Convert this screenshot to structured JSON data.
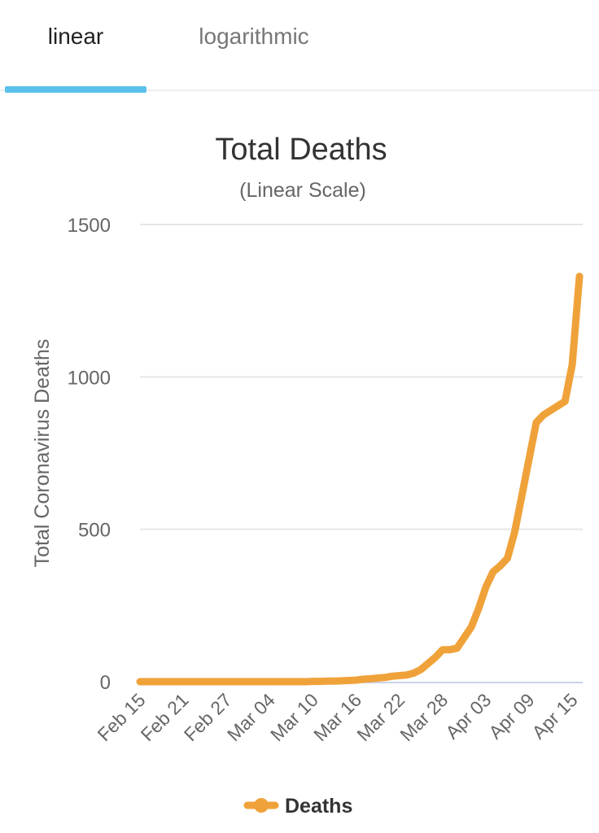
{
  "tabs": [
    {
      "label": "linear",
      "active": true
    },
    {
      "label": "logarithmic",
      "active": false
    }
  ],
  "colors": {
    "accent": "#5bc0eb",
    "series": "#f0a23a",
    "grid": "#e6e6e6",
    "axis": "#c8d3e6",
    "title": "#333333",
    "muted": "#666666"
  },
  "chart_data": {
    "type": "line",
    "title": "Total Deaths",
    "subtitle": "(Linear Scale)",
    "xlabel": "",
    "ylabel": "Total Coronavirus Deaths",
    "ylim": [
      0,
      1500
    ],
    "yticks": [
      0,
      500,
      1000,
      1500
    ],
    "grid": true,
    "legend": "bottom-center",
    "xtick_labels": [
      "Feb 15",
      "Feb 21",
      "Feb 27",
      "Mar 04",
      "Mar 10",
      "Mar 16",
      "Mar 22",
      "Mar 28",
      "Apr 03",
      "Apr 09",
      "Apr 15"
    ],
    "x": [
      "Feb 15",
      "Feb 16",
      "Feb 17",
      "Feb 18",
      "Feb 19",
      "Feb 20",
      "Feb 21",
      "Feb 22",
      "Feb 23",
      "Feb 24",
      "Feb 25",
      "Feb 26",
      "Feb 27",
      "Feb 28",
      "Feb 29",
      "Mar 01",
      "Mar 02",
      "Mar 03",
      "Mar 04",
      "Mar 05",
      "Mar 06",
      "Mar 07",
      "Mar 08",
      "Mar 09",
      "Mar 10",
      "Mar 11",
      "Mar 12",
      "Mar 13",
      "Mar 14",
      "Mar 15",
      "Mar 16",
      "Mar 17",
      "Mar 18",
      "Mar 19",
      "Mar 20",
      "Mar 21",
      "Mar 22",
      "Mar 23",
      "Mar 24",
      "Mar 25",
      "Mar 26",
      "Mar 27",
      "Mar 28",
      "Mar 29",
      "Mar 30",
      "Mar 31",
      "Apr 01",
      "Apr 02",
      "Apr 03",
      "Apr 04",
      "Apr 05",
      "Apr 06",
      "Apr 07",
      "Apr 08",
      "Apr 09",
      "Apr 10",
      "Apr 11",
      "Apr 12",
      "Apr 13",
      "Apr 14",
      "Apr 15",
      "Apr 16"
    ],
    "series": [
      {
        "name": "Deaths",
        "values": [
          0,
          0,
          0,
          0,
          0,
          0,
          0,
          0,
          0,
          0,
          0,
          0,
          0,
          0,
          0,
          0,
          0,
          0,
          0,
          0,
          0,
          0,
          0,
          0,
          1,
          1,
          2,
          2,
          3,
          4,
          5,
          8,
          10,
          12,
          14,
          18,
          20,
          22,
          28,
          40,
          60,
          80,
          105,
          105,
          110,
          145,
          180,
          240,
          310,
          360,
          380,
          405,
          490,
          610,
          730,
          850,
          875,
          890,
          905,
          920,
          1040,
          1330
        ]
      }
    ]
  }
}
